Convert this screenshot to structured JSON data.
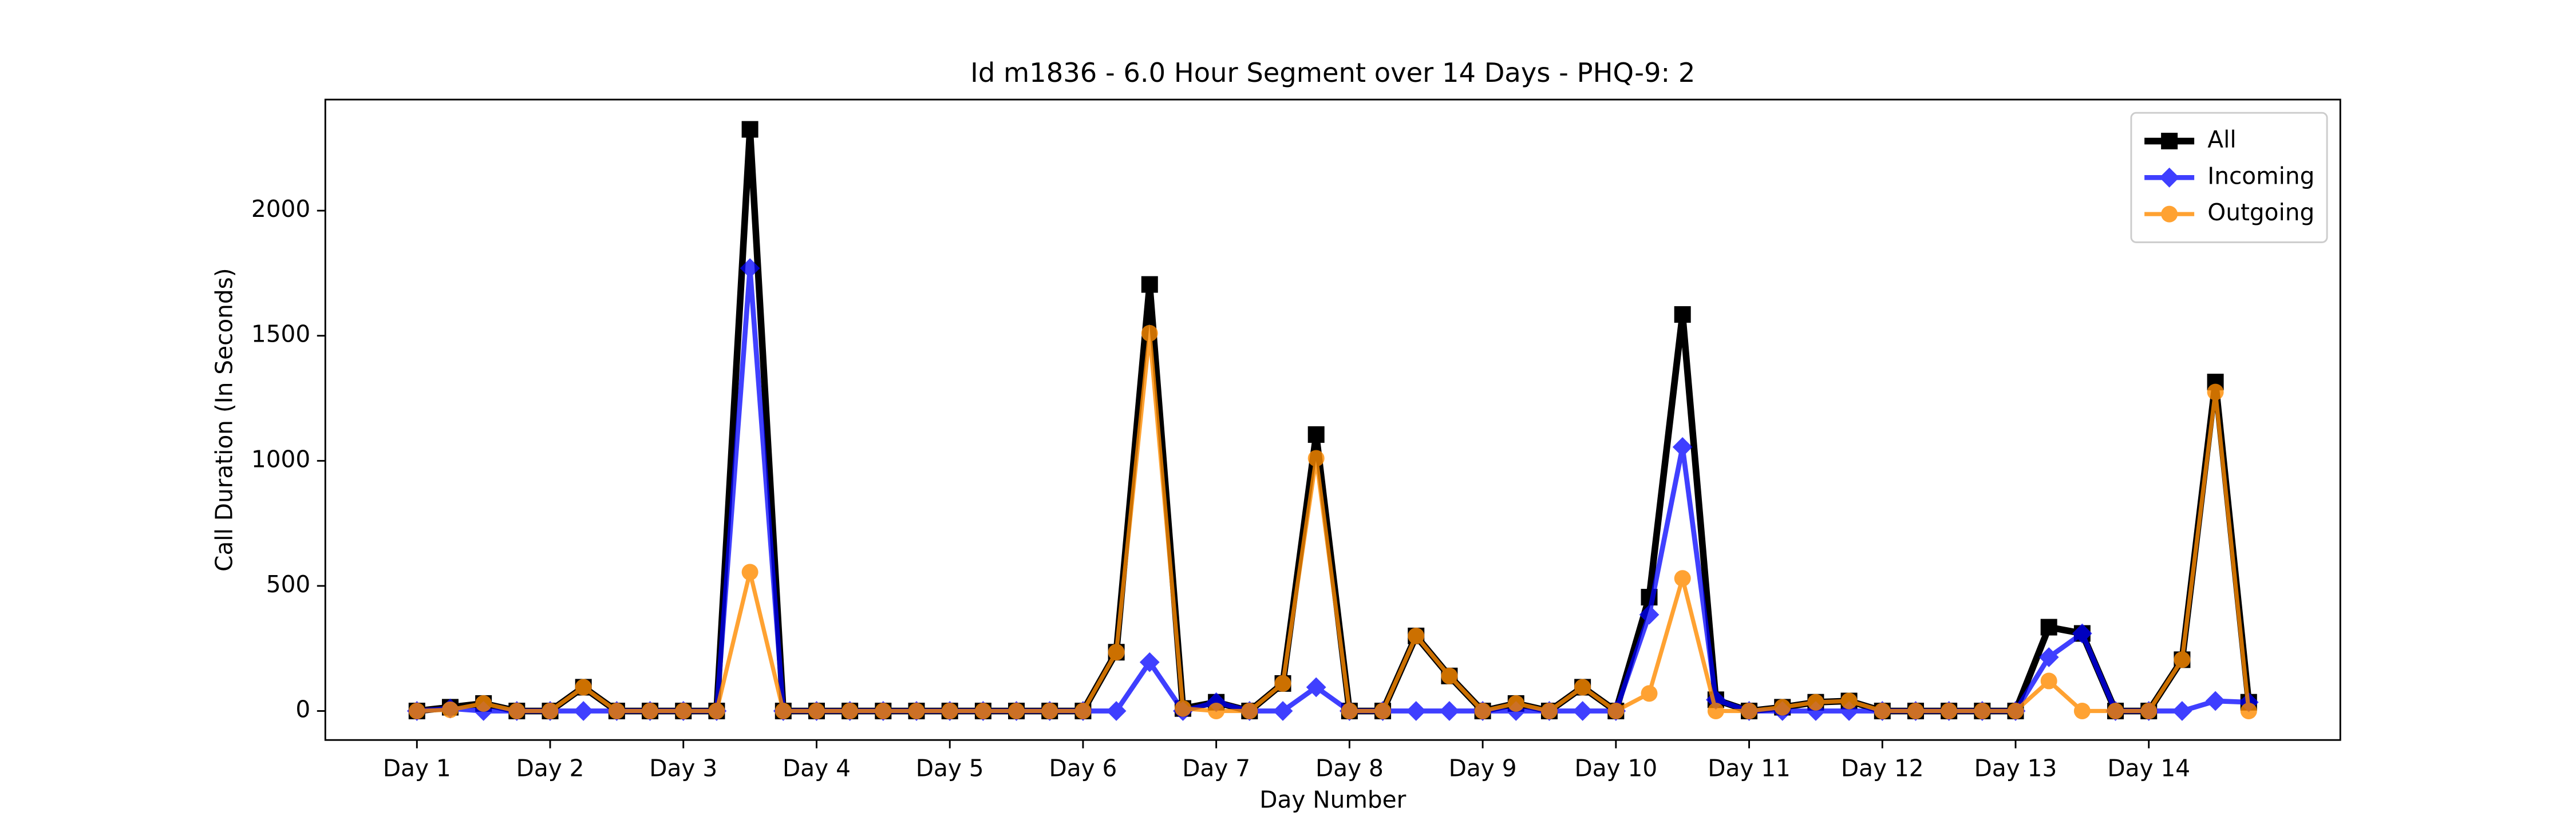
{
  "chart_data": {
    "type": "line",
    "title": "Id m1836 - 6.0 Hour Segment over 14 Days - PHQ-9: 2",
    "xlabel": "Day Number",
    "ylabel": "Call Duration (In Seconds)",
    "x": [
      0,
      1,
      2,
      3,
      4,
      5,
      6,
      7,
      8,
      9,
      10,
      11,
      12,
      13,
      14,
      15,
      16,
      17,
      18,
      19,
      20,
      21,
      22,
      23,
      24,
      25,
      26,
      27,
      28,
      29,
      30,
      31,
      32,
      33,
      34,
      35,
      36,
      37,
      38,
      39,
      40,
      41,
      42,
      43,
      44,
      45,
      46,
      47,
      48,
      49,
      50,
      51,
      52,
      53,
      54,
      55
    ],
    "series": [
      {
        "name": "All",
        "color": "#000000",
        "marker": "square",
        "values": [
          0,
          15,
          30,
          0,
          0,
          95,
          0,
          0,
          0,
          0,
          2325,
          0,
          0,
          0,
          0,
          0,
          0,
          0,
          0,
          0,
          0,
          235,
          1705,
          10,
          35,
          0,
          110,
          1105,
          0,
          0,
          300,
          140,
          0,
          30,
          0,
          95,
          0,
          455,
          1585,
          45,
          0,
          15,
          35,
          40,
          0,
          0,
          0,
          0,
          0,
          335,
          310,
          0,
          0,
          205,
          1315,
          35
        ]
      },
      {
        "name": "Incoming",
        "color": "#0000ff",
        "marker": "diamond",
        "values": [
          0,
          10,
          0,
          0,
          0,
          0,
          0,
          0,
          0,
          0,
          1770,
          0,
          0,
          0,
          0,
          0,
          0,
          0,
          0,
          0,
          0,
          0,
          195,
          0,
          35,
          0,
          0,
          95,
          0,
          0,
          0,
          0,
          0,
          0,
          0,
          0,
          0,
          385,
          1055,
          45,
          0,
          0,
          0,
          0,
          0,
          0,
          0,
          0,
          0,
          215,
          310,
          0,
          0,
          0,
          40,
          35
        ]
      },
      {
        "name": "Outgoing",
        "color": "#ff8c00",
        "marker": "circle",
        "values": [
          0,
          5,
          30,
          0,
          0,
          95,
          0,
          0,
          0,
          0,
          555,
          0,
          0,
          0,
          0,
          0,
          0,
          0,
          0,
          0,
          0,
          235,
          1510,
          10,
          0,
          0,
          110,
          1010,
          0,
          0,
          300,
          140,
          0,
          30,
          0,
          95,
          0,
          70,
          530,
          0,
          0,
          15,
          35,
          40,
          0,
          0,
          0,
          0,
          0,
          120,
          0,
          0,
          0,
          205,
          1275,
          0
        ]
      }
    ],
    "xlim": [
      -2.75,
      57.75
    ],
    "xticks": [
      {
        "value": 0,
        "label": "Day 1"
      },
      {
        "value": 4,
        "label": "Day 2"
      },
      {
        "value": 8,
        "label": "Day 3"
      },
      {
        "value": 12,
        "label": "Day 4"
      },
      {
        "value": 16,
        "label": "Day 5"
      },
      {
        "value": 20,
        "label": "Day 6"
      },
      {
        "value": 24,
        "label": "Day 7"
      },
      {
        "value": 28,
        "label": "Day 8"
      },
      {
        "value": 32,
        "label": "Day 9"
      },
      {
        "value": 36,
        "label": "Day 10"
      },
      {
        "value": 40,
        "label": "Day 11"
      },
      {
        "value": 44,
        "label": "Day 12"
      },
      {
        "value": 48,
        "label": "Day 13"
      },
      {
        "value": 52,
        "label": "Day 14"
      }
    ],
    "ylim": [
      -116,
      2444
    ],
    "yticks": [
      0,
      500,
      1000,
      1500,
      2000
    ],
    "legend": "upper right",
    "grid": false
  }
}
